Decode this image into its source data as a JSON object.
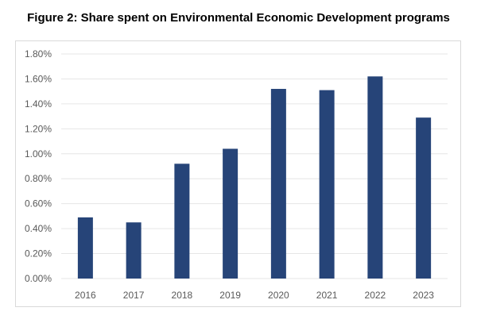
{
  "chart_data": {
    "type": "bar",
    "title": "Figure 2: Share spent on Environmental Economic Development programs",
    "xlabel": "",
    "ylabel": "",
    "categories": [
      "2016",
      "2017",
      "2018",
      "2019",
      "2020",
      "2021",
      "2022",
      "2023"
    ],
    "values": [
      0.49,
      0.45,
      0.92,
      1.04,
      1.52,
      1.51,
      1.62,
      1.29
    ],
    "unit": "%",
    "ylim": [
      0,
      1.8
    ],
    "yticks": [
      "0.00%",
      "0.20%",
      "0.40%",
      "0.60%",
      "0.80%",
      "1.00%",
      "1.20%",
      "1.40%",
      "1.60%",
      "1.80%"
    ],
    "grid": true,
    "legend": "none",
    "bar_color": "#264478",
    "grid_color": "#e6e6e6"
  }
}
